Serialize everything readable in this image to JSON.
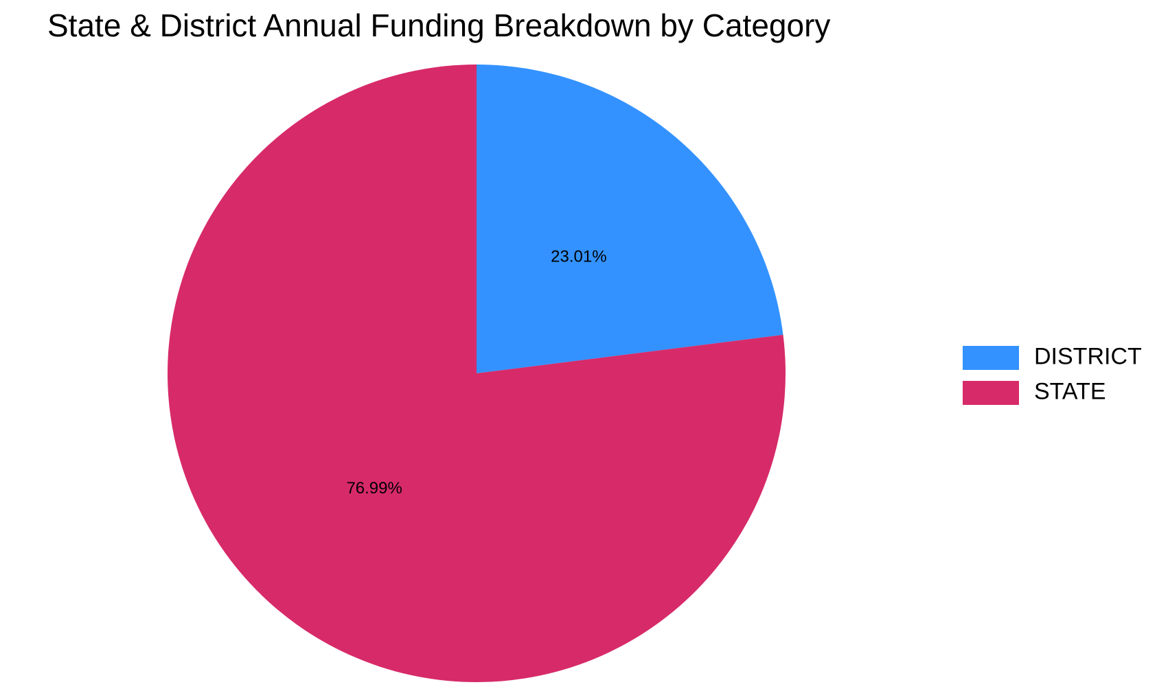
{
  "chart_data": {
    "type": "pie",
    "title": "State & District Annual Funding Breakdown by Category",
    "categories": [
      "DISTRICT",
      "STATE"
    ],
    "values": [
      23.01,
      76.99
    ],
    "labels": [
      "23.01%",
      "76.99%"
    ],
    "colors": [
      "#3392FF",
      "#D72A69"
    ],
    "legend": {
      "position": "right",
      "entries": [
        "DISTRICT",
        "STATE"
      ]
    }
  }
}
